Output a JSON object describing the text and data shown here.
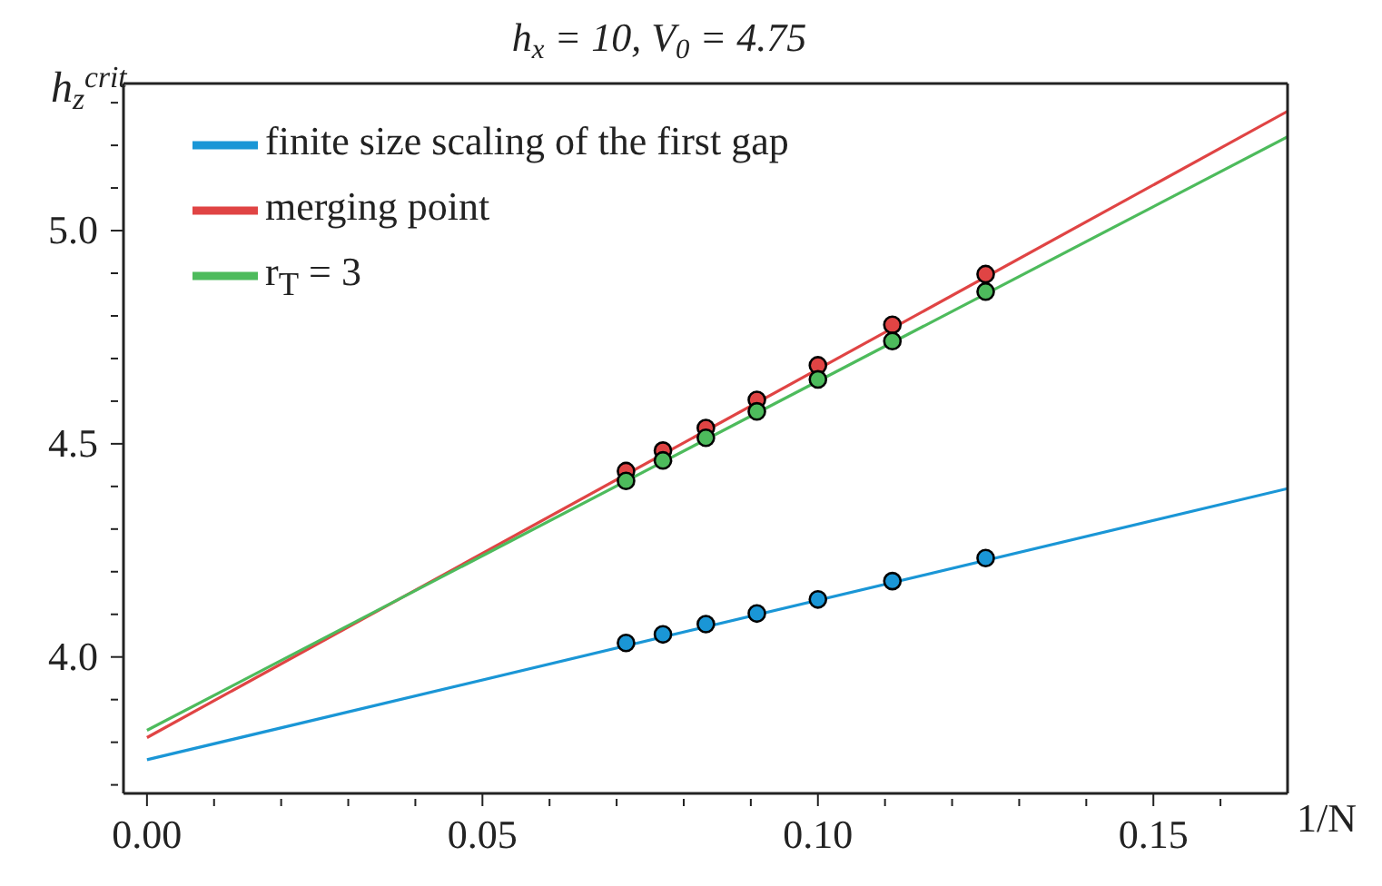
{
  "chart_data": {
    "type": "line",
    "title": "h$_{x}$ = 10, V$_{0}$ = 4.75",
    "xlabel": "1/N",
    "ylabel": "h$_{z}$$^{crit}$",
    "xlim": [
      -0.0035,
      0.17
    ],
    "ylim": [
      3.68,
      5.345
    ],
    "xticks": [
      {
        "value": 0,
        "label": "0.00"
      },
      {
        "value": 0.01,
        "label": null
      },
      {
        "value": 0.02,
        "label": null
      },
      {
        "value": 0.03,
        "label": null
      },
      {
        "value": 0.04,
        "label": null
      },
      {
        "value": 0.05,
        "label": "0.05"
      },
      {
        "value": 0.06,
        "label": null
      },
      {
        "value": 0.07,
        "label": null
      },
      {
        "value": 0.08,
        "label": null
      },
      {
        "value": 0.09,
        "label": null
      },
      {
        "value": 0.1,
        "label": "0.10"
      },
      {
        "value": 0.11,
        "label": null
      },
      {
        "value": 0.12,
        "label": null
      },
      {
        "value": 0.13,
        "label": null
      },
      {
        "value": 0.14,
        "label": null
      },
      {
        "value": 0.15,
        "label": "0.15"
      },
      {
        "value": 0.16,
        "label": null
      }
    ],
    "yticks": [
      {
        "value": 3.7,
        "label": null
      },
      {
        "value": 3.8,
        "label": null
      },
      {
        "value": 3.9,
        "label": null
      },
      {
        "value": 4.0,
        "label": "4.0"
      },
      {
        "value": 4.1,
        "label": null
      },
      {
        "value": 4.2,
        "label": null
      },
      {
        "value": 4.3,
        "label": null
      },
      {
        "value": 4.4,
        "label": null
      },
      {
        "value": 4.5,
        "label": "4.5"
      },
      {
        "value": 4.6,
        "label": null
      },
      {
        "value": 4.7,
        "label": null
      },
      {
        "value": 4.8,
        "label": null
      },
      {
        "value": 4.9,
        "label": null
      },
      {
        "value": 5.0,
        "label": "5.0"
      },
      {
        "value": 5.1,
        "label": null
      },
      {
        "value": 5.2,
        "label": null
      },
      {
        "value": 5.3,
        "label": null
      }
    ],
    "grid": false,
    "legend": "top left",
    "series": [
      {
        "name": "finite size scaling of the first gap",
        "marker": "none",
        "color": "#1a96d6",
        "x": [
          0,
          0.17
        ],
        "values": [
          3.759,
          4.395
        ]
      },
      {
        "name": "merging point",
        "marker": "none",
        "color": "#e04444",
        "x": [
          0,
          0.17
        ],
        "values": [
          3.811,
          5.28
        ]
      },
      {
        "name": "r$_{T}$ = 3",
        "marker": "none",
        "color": "#4dbb5c",
        "x": [
          0,
          0.17
        ],
        "values": [
          3.828,
          5.22
        ]
      },
      {
        "type": "scatter",
        "marker": "circle",
        "color": "#1a96d6",
        "x": [
          0.0714,
          0.0769,
          0.0833,
          0.0909,
          0.1,
          0.1111,
          0.125
        ],
        "values": [
          4.033,
          4.053,
          4.077,
          4.102,
          4.135,
          4.178,
          4.232
        ]
      },
      {
        "type": "scatter",
        "marker": "circle",
        "color": "#e04444",
        "x": [
          0.0714,
          0.0769,
          0.0833,
          0.0909,
          0.1,
          0.1111,
          0.125
        ],
        "values": [
          4.436,
          4.484,
          4.537,
          4.603,
          4.684,
          4.779,
          4.898
        ]
      },
      {
        "type": "scatter",
        "marker": "circle",
        "color": "#4dbb5c",
        "x": [
          0.0714,
          0.0769,
          0.0833,
          0.0909,
          0.1,
          0.1111,
          0.125
        ],
        "values": [
          4.413,
          4.461,
          4.514,
          4.576,
          4.651,
          4.741,
          4.857
        ]
      }
    ]
  }
}
